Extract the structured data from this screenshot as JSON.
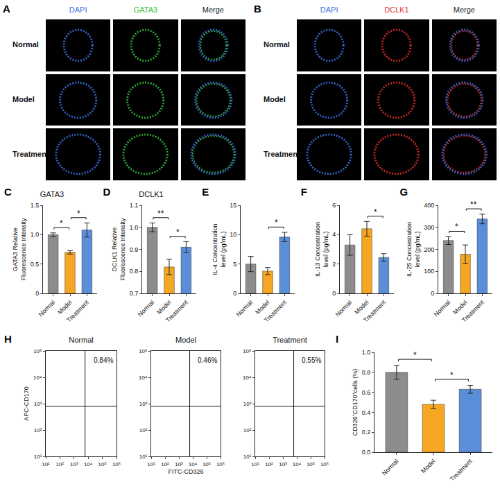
{
  "image_panels": [
    {
      "label": "A",
      "rows": [
        "Normal",
        "Model",
        "Treatment"
      ],
      "columns": [
        {
          "text": "DAPI",
          "color": "#3d6fe0"
        },
        {
          "text": "GATA3",
          "color": "#2fbf3a"
        },
        {
          "text": "Merge",
          "color": "#222222"
        }
      ]
    },
    {
      "label": "B",
      "rows": [
        "Normal",
        "Model",
        "Treatment"
      ],
      "columns": [
        {
          "text": "DAPI",
          "color": "#3d6fe0"
        },
        {
          "text": "DCLK1",
          "color": "#e0302a"
        },
        {
          "text": "Merge",
          "color": "#222222"
        }
      ]
    }
  ],
  "chart_data": [
    {
      "label": "C",
      "type": "bar",
      "title": "GATA3",
      "y_label": "GATA3 Relative Fluorescence Intensity",
      "categories": [
        "Normal",
        "Model",
        "Treatment"
      ],
      "values": [
        1.0,
        0.7,
        1.08
      ],
      "errors": [
        0.03,
        0.03,
        0.12
      ],
      "colors": [
        "#8c8c8c",
        "#f5a623",
        "#5b8ed8"
      ],
      "ylim": [
        0,
        1.5
      ],
      "yticks": [
        0,
        0.5,
        {
          "value": 1,
          "label": "1.0"
        },
        1.5
      ],
      "significance": [
        {
          "between": [
            "Normal",
            "Model"
          ],
          "text": "*"
        },
        {
          "between": [
            "Model",
            "Treatment"
          ],
          "text": "*"
        }
      ]
    },
    {
      "label": "D",
      "type": "bar",
      "title": "DCLK1",
      "y_label": "DCLK1 Relative Fluorescence Intensity",
      "categories": [
        "Normal",
        "Model",
        "Treatment"
      ],
      "values": [
        1.0,
        0.82,
        0.91
      ],
      "errors": [
        0.02,
        0.035,
        0.025
      ],
      "colors": [
        "#8c8c8c",
        "#f5a623",
        "#5b8ed8"
      ],
      "ylim": [
        0.7,
        1.1
      ],
      "yticks": [
        0.7,
        0.8,
        0.9,
        {
          "value": 1,
          "label": "1.0"
        },
        1.1
      ],
      "significance": [
        {
          "between": [
            "Normal",
            "Model"
          ],
          "text": "**"
        },
        {
          "between": [
            "Model",
            "Treatment"
          ],
          "text": "*"
        }
      ]
    },
    {
      "label": "E",
      "type": "bar",
      "y_label": "IL-4 Concentration level (pg/mL)",
      "categories": [
        "Normal",
        "Model",
        "Treatment"
      ],
      "values": [
        5.0,
        3.8,
        9.6
      ],
      "errors": [
        1.3,
        0.6,
        0.8
      ],
      "colors": [
        "#8c8c8c",
        "#f5a623",
        "#5b8ed8"
      ],
      "ylim": [
        0,
        15
      ],
      "yticks": [
        0,
        5,
        10,
        15
      ],
      "significance": [
        {
          "between": [
            "Model",
            "Treatment"
          ],
          "text": "*"
        }
      ]
    },
    {
      "label": "F",
      "type": "bar",
      "y_label": "IL-13 Concentration level (pg/mL)",
      "categories": [
        "Normal",
        "Model",
        "Treatment"
      ],
      "values": [
        3.3,
        4.4,
        2.45
      ],
      "errors": [
        0.7,
        0.5,
        0.25
      ],
      "colors": [
        "#8c8c8c",
        "#f5a623",
        "#5b8ed8"
      ],
      "ylim": [
        0,
        6
      ],
      "yticks": [
        0,
        2,
        4,
        6
      ],
      "significance": [
        {
          "between": [
            "Model",
            "Treatment"
          ],
          "text": "*"
        }
      ]
    },
    {
      "label": "G",
      "type": "bar",
      "y_label": "IL-25 Concentration level (pg/mL)",
      "categories": [
        "Normal",
        "Model",
        "Treatment"
      ],
      "values": [
        240,
        178,
        338
      ],
      "errors": [
        18,
        42,
        22
      ],
      "colors": [
        "#8c8c8c",
        "#f5a623",
        "#5b8ed8"
      ],
      "ylim": [
        0,
        400
      ],
      "yticks": [
        0,
        100,
        200,
        300,
        400
      ],
      "significance": [
        {
          "between": [
            "Normal",
            "Model"
          ],
          "text": "*"
        },
        {
          "between": [
            "Model",
            "Treatment"
          ],
          "text": "**"
        }
      ]
    },
    {
      "label": "H",
      "type": "scatter",
      "title": "Normal",
      "y_label": "APC-CD170",
      "log": true,
      "xlim": [
        10,
        1000000
      ],
      "ylim": [
        10,
        100000
      ],
      "xticks": [
        {
          "value": 10,
          "label": "10¹"
        },
        {
          "value": 100,
          "label": "10²"
        },
        {
          "value": 1000,
          "label": "10³"
        },
        {
          "value": 10000,
          "label": "10⁴"
        },
        {
          "value": 100000,
          "label": "10⁵"
        },
        {
          "value": 1000000,
          "label": "10⁶"
        }
      ],
      "yticks": [
        {
          "value": 10,
          "label": "10¹"
        },
        {
          "value": 100,
          "label": "10²"
        },
        {
          "value": 1000,
          "label": "10³"
        },
        {
          "value": 10000,
          "label": "10⁴"
        },
        {
          "value": 100000,
          "label": "10⁵"
        }
      ],
      "gate": {
        "x": 6000,
        "y": 800
      },
      "quadrant_label": "0.84%"
    },
    {
      "type": "scatter",
      "title": "Model",
      "x_label": "FITC-CD326",
      "log": true,
      "xlim": [
        10,
        1000000
      ],
      "ylim": [
        10,
        100000
      ],
      "xticks": [
        {
          "value": 10,
          "label": "10¹"
        },
        {
          "value": 100,
          "label": "10²"
        },
        {
          "value": 1000,
          "label": "10³"
        },
        {
          "value": 10000,
          "label": "10⁴"
        },
        {
          "value": 100000,
          "label": "10⁵"
        },
        {
          "value": 1000000,
          "label": "10⁶"
        }
      ],
      "yticks": [
        {
          "value": 10,
          "label": "10¹"
        },
        {
          "value": 100,
          "label": "10²"
        },
        {
          "value": 1000,
          "label": "10³"
        },
        {
          "value": 10000,
          "label": "10⁴"
        },
        {
          "value": 100000,
          "label": "10⁵"
        }
      ],
      "gate": {
        "x": 6000,
        "y": 800
      },
      "quadrant_label": "0.46%"
    },
    {
      "type": "scatter",
      "title": "Treatment",
      "log": true,
      "xlim": [
        10,
        1000000
      ],
      "ylim": [
        10,
        100000
      ],
      "xticks": [
        {
          "value": 10,
          "label": "10¹"
        },
        {
          "value": 100,
          "label": "10²"
        },
        {
          "value": 1000,
          "label": "10³"
        },
        {
          "value": 10000,
          "label": "10⁴"
        },
        {
          "value": 100000,
          "label": "10⁵"
        },
        {
          "value": 1000000,
          "label": "10⁶"
        }
      ],
      "yticks": [
        {
          "value": 10,
          "label": "10¹"
        },
        {
          "value": 100,
          "label": "10²"
        },
        {
          "value": 1000,
          "label": "10³"
        },
        {
          "value": 10000,
          "label": "10⁴"
        },
        {
          "value": 100000,
          "label": "10⁵"
        }
      ],
      "gate": {
        "x": 6000,
        "y": 800
      },
      "quadrant_label": "0.55%"
    },
    {
      "label": "I",
      "type": "bar",
      "y_label": "CD326⁺CD170⁺cells (%)",
      "categories": [
        "Normal",
        "Model",
        "Treatment"
      ],
      "values": [
        0.8,
        0.48,
        0.63
      ],
      "errors": [
        0.07,
        0.04,
        0.04
      ],
      "colors": [
        "#8c8c8c",
        "#f5a623",
        "#5b8ed8"
      ],
      "ylim": [
        0,
        1
      ],
      "yticks": [
        {
          "value": 0,
          "label": "0.0"
        },
        0.2,
        0.4,
        0.6,
        0.8,
        {
          "value": 1,
          "label": "1.0"
        }
      ],
      "significance": [
        {
          "between": [
            "Normal",
            "Model"
          ],
          "text": "*"
        },
        {
          "between": [
            "Model",
            "Treatment"
          ],
          "text": "*"
        }
      ]
    }
  ]
}
